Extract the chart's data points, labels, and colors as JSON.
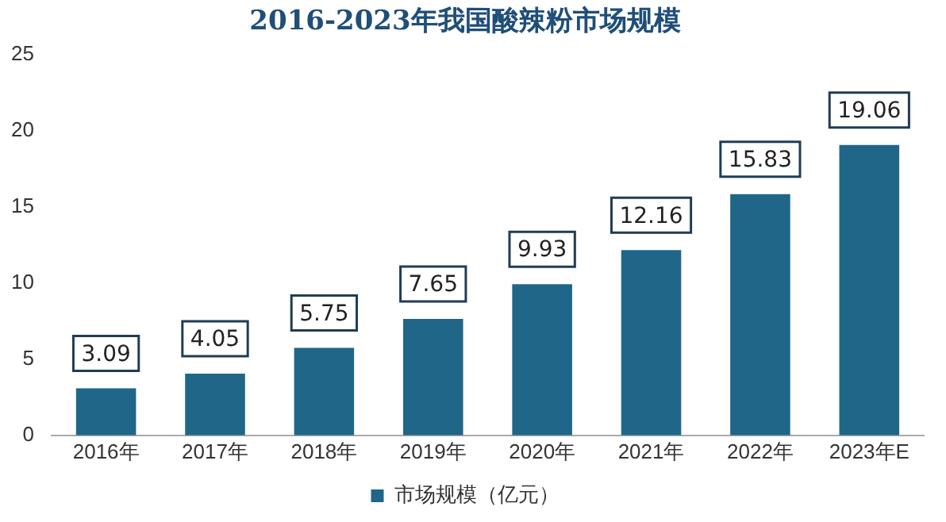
{
  "chart_data": {
    "type": "bar",
    "title": "2016-2023年我国酸辣粉市场规模",
    "categories": [
      "2016年",
      "2017年",
      "2018年",
      "2019年",
      "2020年",
      "2021年",
      "2022年",
      "2023年E"
    ],
    "series": [
      {
        "name": "市场规模（亿元）",
        "color": "#1f6688",
        "values": [
          3.09,
          4.05,
          5.75,
          7.65,
          9.93,
          12.16,
          15.83,
          19.06
        ]
      }
    ],
    "ylim": [
      0,
      25
    ],
    "yticks": [
      0,
      5,
      10,
      15,
      20,
      25
    ],
    "grid": false,
    "legend": "bottom",
    "data_labels": true
  }
}
